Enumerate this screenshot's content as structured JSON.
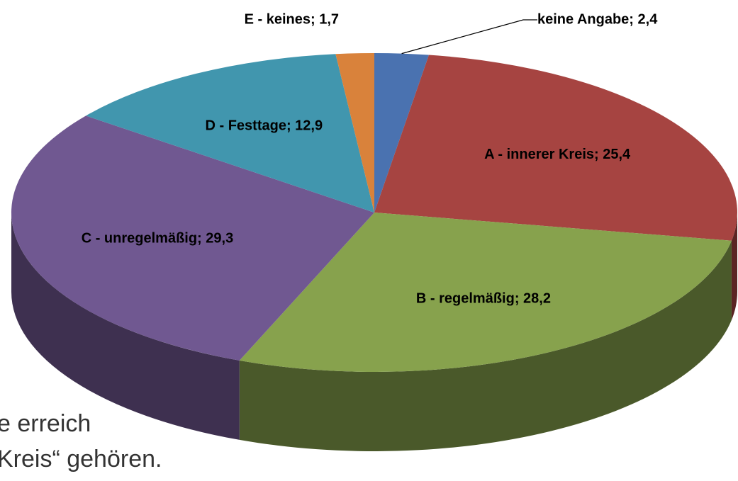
{
  "background_text": [
    "e erreich",
    "Kreis“ gehören."
  ],
  "chart_data": {
    "type": "pie3d",
    "categories": [
      "keine Angabe",
      "A - innerer Kreis",
      "B - regelmäßig",
      "C - unregelmäßig",
      "D - Festtage",
      "E - keines"
    ],
    "values": [
      2.4,
      25.4,
      28.2,
      29.3,
      12.9,
      1.7
    ],
    "value_labels": [
      "keine Angabe; 2,4",
      "A - innerer Kreis; 25,4",
      "B - regelmäßig; 28,2",
      "C - unregelmäßig; 29,3",
      "D - Festtage; 12,9",
      "E - keines; 1,7"
    ],
    "colors": [
      "#4a72b0",
      "#a64441",
      "#87a24d",
      "#705891",
      "#4196ae",
      "#d9823b"
    ]
  }
}
